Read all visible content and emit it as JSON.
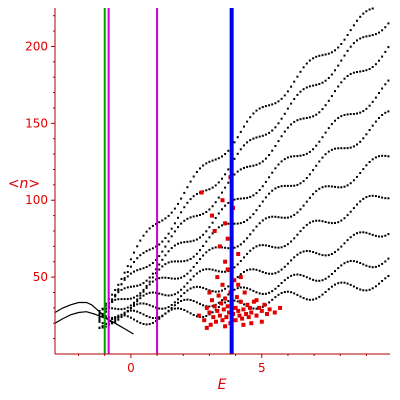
{
  "chart_data": {
    "type": "scatter",
    "title": "",
    "xlabel": "E",
    "ylabel": "<n>",
    "xlim": [
      -2.9,
      9.9
    ],
    "ylim": [
      0,
      225
    ],
    "xticks": [
      0,
      5
    ],
    "yticks": [
      50,
      100,
      150,
      200
    ],
    "grid": false,
    "legend": "none",
    "colors": {
      "axis": "#b00000",
      "tick_label": "#e00000",
      "black_points": "#000000",
      "red_points": "#e00000",
      "green_line": "#00a000",
      "magenta_line": "#cc00cc",
      "blue_line": "#0000ee"
    },
    "vertical_lines": [
      {
        "x": -1.0,
        "color": "#00a000"
      },
      {
        "x": -0.85,
        "color": "#cc00cc"
      },
      {
        "x": 1.0,
        "color": "#cc00cc"
      },
      {
        "x": 3.85,
        "color": "#0000ee"
      }
    ],
    "series": [
      {
        "color": "#000000",
        "style": "line",
        "points": [
          [
            -2.9,
            27
          ],
          [
            -2.6,
            30
          ],
          [
            -2.3,
            32
          ],
          [
            -2.0,
            33.5
          ],
          [
            -1.7,
            33.5
          ],
          [
            -1.5,
            32
          ],
          [
            -1.3,
            29
          ],
          [
            -1.1,
            26
          ],
          [
            -0.9,
            23
          ],
          [
            -0.7,
            20
          ]
        ]
      },
      {
        "color": "#000000",
        "style": "line",
        "points": [
          [
            -2.9,
            20
          ],
          [
            -2.6,
            23
          ],
          [
            -2.3,
            25.5
          ],
          [
            -2.0,
            27
          ],
          [
            -1.7,
            27.5
          ],
          [
            -1.4,
            26
          ],
          [
            -1.1,
            24
          ],
          [
            -0.8,
            22
          ],
          [
            -0.5,
            19
          ],
          [
            -0.2,
            16
          ],
          [
            0.1,
            13
          ]
        ]
      },
      {
        "color": "#000000",
        "style": "dots",
        "curves": [
          {
            "a": 22,
            "b": 210,
            "p": 0.75
          },
          {
            "a": 24,
            "b": 195,
            "p": 0.85
          },
          {
            "a": 25,
            "b": 175,
            "p": 0.9
          },
          {
            "a": 25,
            "b": 150,
            "p": 0.95
          },
          {
            "a": 25,
            "b": 130,
            "p": 1.0
          },
          {
            "a": 24,
            "b": 105,
            "p": 1.0
          },
          {
            "a": 23,
            "b": 82,
            "p": 1.05
          },
          {
            "a": 22,
            "b": 60,
            "p": 1.1
          },
          {
            "a": 21,
            "b": 42,
            "p": 1.15
          },
          {
            "a": 20,
            "b": 28,
            "p": 1.2
          }
        ]
      },
      {
        "color": "#e00000",
        "style": "squares",
        "points": [
          [
            2.6,
            25
          ],
          [
            2.8,
            22
          ],
          [
            2.9,
            30
          ],
          [
            3.0,
            27
          ],
          [
            3.05,
            19
          ],
          [
            3.1,
            35
          ],
          [
            3.15,
            24
          ],
          [
            3.2,
            31
          ],
          [
            3.25,
            21
          ],
          [
            3.3,
            28
          ],
          [
            3.35,
            38
          ],
          [
            3.4,
            25
          ],
          [
            3.45,
            33
          ],
          [
            3.5,
            22
          ],
          [
            3.5,
            45
          ],
          [
            3.55,
            29
          ],
          [
            3.6,
            36
          ],
          [
            3.6,
            60
          ],
          [
            3.65,
            24
          ],
          [
            3.7,
            31
          ],
          [
            3.7,
            55
          ],
          [
            3.75,
            27
          ],
          [
            3.8,
            40
          ],
          [
            3.8,
            20
          ],
          [
            3.85,
            33
          ],
          [
            3.9,
            26
          ],
          [
            3.95,
            48
          ],
          [
            4.0,
            30
          ],
          [
            4.0,
            22
          ],
          [
            4.05,
            37
          ],
          [
            4.1,
            28
          ],
          [
            4.1,
            65
          ],
          [
            4.15,
            25
          ],
          [
            4.2,
            34
          ],
          [
            4.2,
            50
          ],
          [
            4.25,
            23
          ],
          [
            4.3,
            29
          ],
          [
            4.35,
            40
          ],
          [
            4.4,
            26
          ],
          [
            4.45,
            32
          ],
          [
            4.5,
            24
          ],
          [
            4.55,
            30
          ],
          [
            4.6,
            27
          ],
          [
            4.7,
            34
          ],
          [
            4.8,
            25
          ],
          [
            4.9,
            30
          ],
          [
            5.0,
            28
          ],
          [
            5.1,
            32
          ],
          [
            5.2,
            26
          ],
          [
            5.3,
            29
          ],
          [
            5.5,
            27
          ],
          [
            5.7,
            30
          ],
          [
            3.2,
            80
          ],
          [
            3.5,
            100
          ],
          [
            3.7,
            75
          ],
          [
            3.9,
            95
          ],
          [
            3.1,
            90
          ],
          [
            3.4,
            70
          ],
          [
            4.1,
            45
          ],
          [
            2.7,
            105
          ],
          [
            3.3,
            50
          ],
          [
            3.6,
            18
          ],
          [
            4.3,
            19
          ],
          [
            3.0,
            40
          ],
          [
            2.9,
            17
          ],
          [
            3.8,
            115
          ],
          [
            3.6,
            85
          ],
          [
            4.6,
            20
          ],
          [
            5.0,
            21
          ],
          [
            4.8,
            35
          ]
        ]
      }
    ]
  }
}
